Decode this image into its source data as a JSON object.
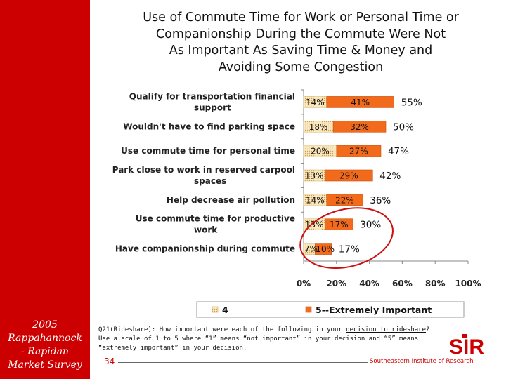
{
  "sidebar": {
    "lines": [
      "2005",
      "Rappahannock",
      "- Rapidan",
      "Market Survey"
    ]
  },
  "title": {
    "line1": "Use of Commute Time for Work or Personal Time or",
    "line2_pre": "Companionship During the Commute Were ",
    "line2_underlined": "Not",
    "line3": "As Important As Saving Time & Money and",
    "line4": "Avoiding Some Congestion"
  },
  "chart_data": {
    "type": "bar",
    "orientation": "horizontal",
    "stacked": true,
    "categories": [
      [
        "Qualify for transportation financial",
        "support"
      ],
      [
        "Wouldn't have to find parking space"
      ],
      [
        "Use commute time for personal time"
      ],
      [
        "Park close to work in reserved carpool",
        "spaces"
      ],
      [
        "Help decrease air pollution"
      ],
      [
        "Use commute time for productive",
        "work"
      ],
      [
        "Have companionship during commute"
      ]
    ],
    "series": [
      {
        "name": "4",
        "values": [
          14,
          18,
          20,
          13,
          14,
          13,
          7
        ],
        "labels": [
          "14%",
          "18%",
          "20%",
          "13%",
          "14%",
          "13%",
          "7%"
        ],
        "color": "#fde9bf",
        "pattern": "dots"
      },
      {
        "name": "5--Extremely Important",
        "values": [
          41,
          32,
          27,
          29,
          22,
          17,
          10
        ],
        "labels": [
          "41%",
          "32%",
          "27%",
          "29%",
          "22%",
          "17%",
          "10%"
        ],
        "color": "#f26a1b"
      }
    ],
    "totals": [
      55,
      50,
      47,
      42,
      36,
      30,
      17
    ],
    "total_labels": [
      "55%",
      "50%",
      "47%",
      "42%",
      "36%",
      "30%",
      "17%"
    ],
    "x_ticks": [
      0,
      20,
      40,
      60,
      80,
      100
    ],
    "x_tick_labels": [
      "0%",
      "20%",
      "40%",
      "60%",
      "80%",
      "100%"
    ],
    "xlim": [
      0,
      100
    ],
    "legend_position": "bottom",
    "highlight": {
      "type": "circle",
      "categories": [
        5,
        6
      ],
      "color": "#cc1111"
    }
  },
  "footer": {
    "question_lines": [
      {
        "pre": "Q21(Rideshare): How important were each of the following in your ",
        "underlined": "decision to rideshare",
        "post": "?"
      },
      {
        "pre": "Use a scale of 1 to 5 where “1” means “not important” in your decision and “5” means",
        "underlined": "",
        "post": ""
      },
      {
        "pre": "“extremely important” in your decision.",
        "underlined": "",
        "post": ""
      }
    ],
    "page_number": "34",
    "organization": "Southeastern Institute of Research",
    "logo_text": "SIR"
  },
  "colors": {
    "brand_red": "#cc0000",
    "series4_fill": "#fde9bf",
    "series4_dot": "#c9a35a",
    "series5_fill": "#f26a1b",
    "axis": "#888888",
    "highlight": "#cc1111"
  }
}
